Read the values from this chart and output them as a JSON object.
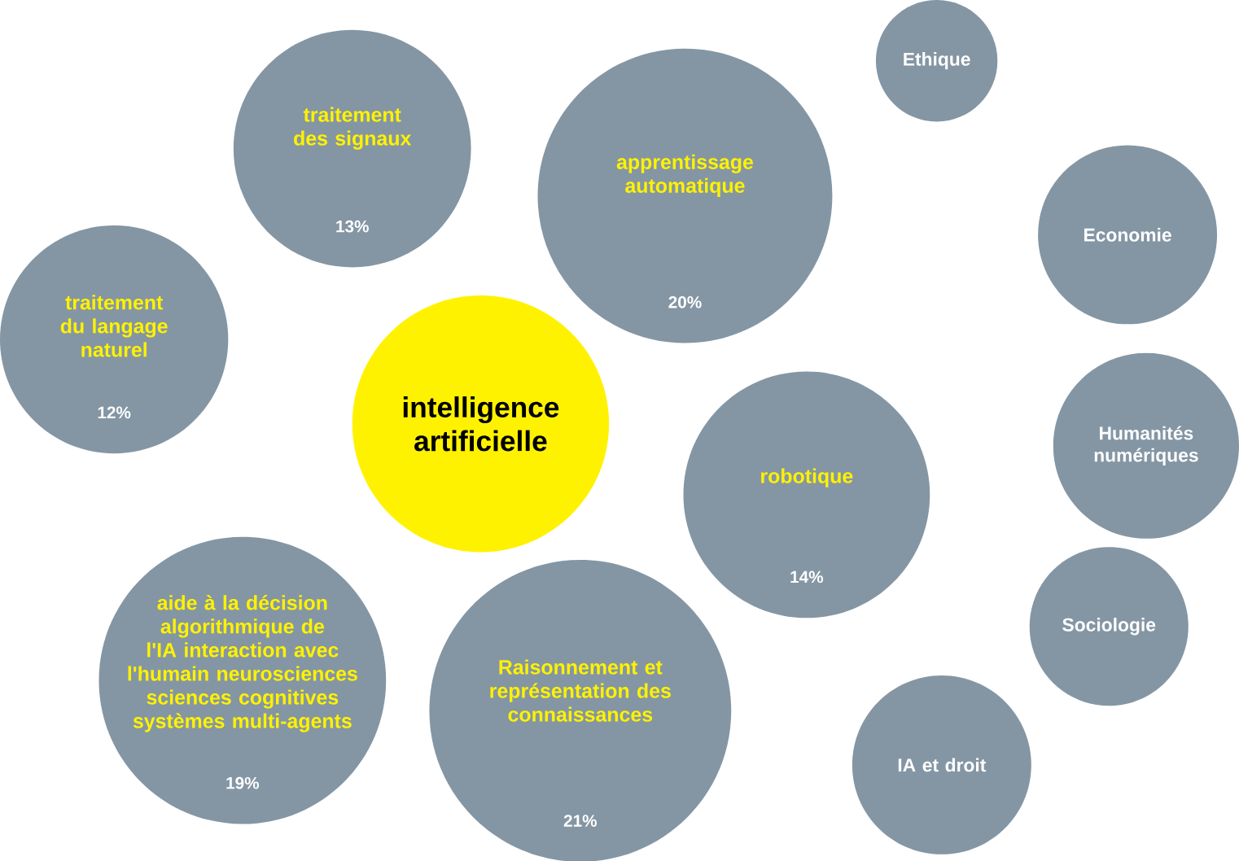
{
  "chart_data": {
    "type": "other",
    "title": "intelligence artificielle",
    "categories": [
      "traitement des signaux",
      "apprentissage automatique",
      "traitement du langage naturel",
      "robotique",
      "aide à la décision algorithmique de l'IA interaction avec l'humain neurosciences sciences cognitives systèmes multi-agents",
      "Raisonnement et représentation des connaissances",
      "Ethique",
      "Economie",
      "Humanités numériques",
      "Sociologie",
      "IA et droit"
    ],
    "values": [
      13,
      20,
      12,
      14,
      19,
      21,
      null,
      null,
      null,
      null,
      null
    ],
    "value_labels": [
      "13%",
      "20%",
      "12%",
      "14%",
      "19%",
      "21%",
      null,
      null,
      null,
      null,
      null
    ],
    "colors": [
      "#8496a4",
      "#8496a4",
      "#8496a4",
      "#8496a4",
      "#8496a4",
      "#8496a4",
      "#8496a4",
      "#8496a4",
      "#8496a4",
      "#8496a4",
      "#8496a4"
    ]
  }
}
